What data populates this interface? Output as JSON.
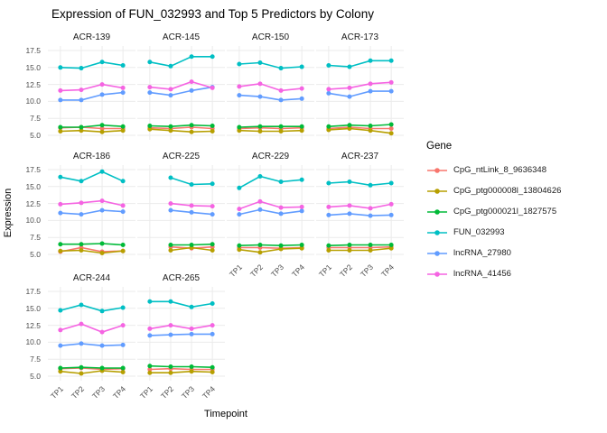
{
  "title": "Expression of FUN_032993 and Top 5 Predictors by Colony",
  "axes": {
    "x_title": "Timepoint",
    "y_title": "Expression"
  },
  "legend": {
    "title": "Gene"
  },
  "chart_data": {
    "type": "line",
    "faceted_by": "Colony",
    "title": "Expression of FUN_032993 and Top 5 Predictors by Colony",
    "xlabel": "Timepoint",
    "ylabel": "Expression",
    "x_categories": [
      "TP1",
      "TP2",
      "TP3",
      "TP4"
    ],
    "yticks": [
      5.0,
      7.5,
      10.0,
      12.5,
      15.0,
      17.5
    ],
    "ylim": [
      4.4,
      18.1
    ],
    "grid": true,
    "legend_title": "Gene",
    "legend_position": "right",
    "series": [
      {
        "name": "CpG_ntLink_8_9636348",
        "color": "#F8766D"
      },
      {
        "name": "CpG_ptg000008l_13804626",
        "color": "#B79F00"
      },
      {
        "name": "CpG_ptg000021l_1827575",
        "color": "#00BA38"
      },
      {
        "name": "FUN_032993",
        "color": "#00BFC4"
      },
      {
        "name": "lncRNA_27980",
        "color": "#619CFF"
      },
      {
        "name": "lncRNA_41456",
        "color": "#F564E2"
      }
    ],
    "facets": [
      {
        "colony": "ACR-139",
        "values": [
          [
            6.1,
            6.2,
            6.0,
            6.0
          ],
          [
            5.6,
            5.7,
            5.5,
            5.7
          ],
          [
            6.2,
            6.2,
            6.5,
            6.3
          ],
          [
            15.0,
            14.9,
            15.8,
            15.3
          ],
          [
            10.2,
            10.2,
            11.0,
            11.3
          ],
          [
            11.6,
            11.7,
            12.5,
            12.0
          ]
        ]
      },
      {
        "colony": "ACR-145",
        "values": [
          [
            6.1,
            6.0,
            6.2,
            6.0
          ],
          [
            5.9,
            5.7,
            5.5,
            5.6
          ],
          [
            6.4,
            6.3,
            6.5,
            6.4
          ],
          [
            15.8,
            15.2,
            16.6,
            16.6
          ],
          [
            11.3,
            10.9,
            11.6,
            12.1
          ],
          [
            12.1,
            11.8,
            12.9,
            12.0
          ]
        ]
      },
      {
        "colony": "ACR-150",
        "values": [
          [
            6.0,
            6.1,
            6.0,
            6.1
          ],
          [
            5.7,
            5.6,
            5.6,
            5.7
          ],
          [
            6.2,
            6.3,
            6.3,
            6.3
          ],
          [
            15.5,
            15.7,
            14.9,
            15.1
          ],
          [
            10.9,
            10.7,
            10.2,
            10.4
          ],
          [
            12.2,
            12.6,
            11.6,
            11.9
          ]
        ]
      },
      {
        "colony": "ACR-173",
        "values": [
          [
            6.0,
            6.2,
            6.0,
            6.0
          ],
          [
            5.8,
            6.0,
            5.7,
            5.3
          ],
          [
            6.3,
            6.5,
            6.4,
            6.6
          ],
          [
            15.3,
            15.1,
            16.0,
            16.0
          ],
          [
            11.2,
            10.7,
            11.5,
            11.5
          ],
          [
            11.8,
            12.0,
            12.6,
            12.8
          ]
        ]
      },
      {
        "colony": "ACR-186",
        "values": [
          [
            5.4,
            6.0,
            5.4,
            5.5
          ],
          [
            5.5,
            5.6,
            5.2,
            5.5
          ],
          [
            6.5,
            6.5,
            6.6,
            6.4
          ],
          [
            16.4,
            15.8,
            17.2,
            15.8
          ],
          [
            11.1,
            10.9,
            11.5,
            11.3
          ],
          [
            12.4,
            12.6,
            12.9,
            12.2
          ]
        ]
      },
      {
        "colony": "ACR-225",
        "values": [
          [
            null,
            6.1,
            5.9,
            6.1
          ],
          [
            null,
            5.6,
            6.0,
            5.6
          ],
          [
            null,
            6.4,
            6.4,
            6.5
          ],
          [
            null,
            16.3,
            15.3,
            15.4
          ],
          [
            null,
            11.5,
            11.2,
            10.9
          ],
          [
            null,
            12.5,
            12.2,
            12.1
          ]
        ]
      },
      {
        "colony": "ACR-229",
        "values": [
          [
            6.0,
            6.0,
            5.9,
            6.0
          ],
          [
            5.7,
            5.3,
            5.8,
            5.9
          ],
          [
            6.3,
            6.4,
            6.3,
            6.4
          ],
          [
            14.8,
            16.5,
            15.7,
            16.0
          ],
          [
            10.9,
            11.6,
            11.0,
            11.4
          ],
          [
            11.7,
            12.8,
            11.9,
            12.0
          ]
        ]
      },
      {
        "colony": "ACR-237",
        "values": [
          [
            6.0,
            6.0,
            6.0,
            6.1
          ],
          [
            5.6,
            5.6,
            5.6,
            5.9
          ],
          [
            6.3,
            6.4,
            6.4,
            6.4
          ],
          [
            15.5,
            15.7,
            15.2,
            15.5
          ],
          [
            10.8,
            11.0,
            10.7,
            10.8
          ],
          [
            12.0,
            12.2,
            11.8,
            12.4
          ]
        ]
      },
      {
        "colony": "ACR-244",
        "values": [
          [
            6.1,
            6.2,
            6.0,
            6.1
          ],
          [
            5.7,
            5.4,
            5.8,
            5.6
          ],
          [
            6.2,
            6.3,
            6.2,
            6.2
          ],
          [
            14.7,
            15.5,
            14.6,
            15.1
          ],
          [
            9.5,
            9.8,
            9.5,
            9.6
          ],
          [
            11.8,
            12.7,
            11.5,
            12.5
          ]
        ]
      },
      {
        "colony": "ACR-265",
        "values": [
          [
            6.0,
            6.1,
            6.0,
            6.0
          ],
          [
            5.5,
            5.5,
            5.7,
            5.6
          ],
          [
            6.5,
            6.4,
            6.4,
            6.3
          ],
          [
            16.0,
            16.0,
            15.2,
            15.7
          ],
          [
            11.0,
            11.1,
            11.2,
            11.2
          ],
          [
            12.0,
            12.5,
            12.0,
            12.5
          ]
        ]
      }
    ],
    "style": {
      "gridline_color": "#EBEBEB",
      "tick_label_color": "#4d4d4d",
      "background": "#ffffff"
    }
  }
}
